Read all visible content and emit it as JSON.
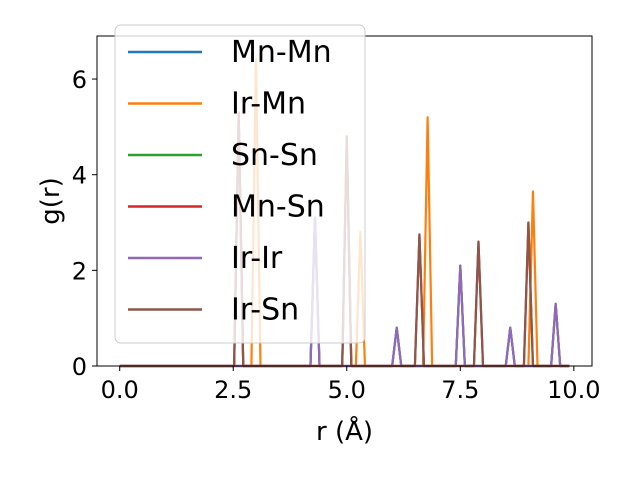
{
  "chart_data": {
    "type": "line",
    "xlabel": "r (Å)",
    "ylabel": "g(r)",
    "xlim": [
      -0.5,
      10.4
    ],
    "ylim": [
      0,
      6.9
    ],
    "xticks": [
      0.0,
      2.5,
      5.0,
      7.5,
      10.0
    ],
    "xtick_labels": [
      "0.0",
      "2.5",
      "5.0",
      "7.5",
      "10.0"
    ],
    "yticks": [
      0,
      2,
      4,
      6
    ],
    "ytick_labels": [
      "0",
      "2",
      "4",
      "6"
    ],
    "grid": false,
    "legend_position": "upper-left",
    "series": [
      {
        "name": "Mn-Mn",
        "color": "#1f77b4",
        "peaks": [
          [
            2.62,
            5.3
          ],
          [
            4.3,
            3.1
          ],
          [
            5.0,
            4.8
          ],
          [
            6.1,
            0.8
          ],
          [
            7.5,
            2.1
          ],
          [
            8.6,
            0.8
          ],
          [
            9.6,
            1.3
          ]
        ]
      },
      {
        "name": "Ir-Mn",
        "color": "#ff7f0e",
        "peaks": [
          [
            3.0,
            6.4
          ],
          [
            5.3,
            2.8
          ],
          [
            6.78,
            5.2
          ],
          [
            9.1,
            3.65
          ]
        ]
      },
      {
        "name": "Sn-Sn",
        "color": "#2ca02c",
        "peaks": [
          [
            4.3,
            3.1
          ],
          [
            6.1,
            0.8
          ],
          [
            7.5,
            2.1
          ],
          [
            8.6,
            0.8
          ],
          [
            9.6,
            1.3
          ]
        ]
      },
      {
        "name": "Mn-Sn",
        "color": "#d62728",
        "peaks": [
          [
            2.62,
            5.3
          ],
          [
            5.0,
            4.8
          ],
          [
            6.6,
            2.75
          ],
          [
            7.9,
            2.6
          ],
          [
            9.0,
            3.0
          ]
        ]
      },
      {
        "name": "Ir-Ir",
        "color": "#9467bd",
        "peaks": [
          [
            4.3,
            3.1
          ],
          [
            6.1,
            0.8
          ],
          [
            7.5,
            2.1
          ],
          [
            8.6,
            0.8
          ],
          [
            9.6,
            1.3
          ]
        ]
      },
      {
        "name": "Ir-Sn",
        "color": "#8c564b",
        "peaks": [
          [
            2.62,
            5.3
          ],
          [
            5.0,
            4.8
          ],
          [
            6.6,
            2.75
          ],
          [
            7.9,
            2.6
          ],
          [
            9.0,
            3.0
          ]
        ]
      }
    ]
  }
}
